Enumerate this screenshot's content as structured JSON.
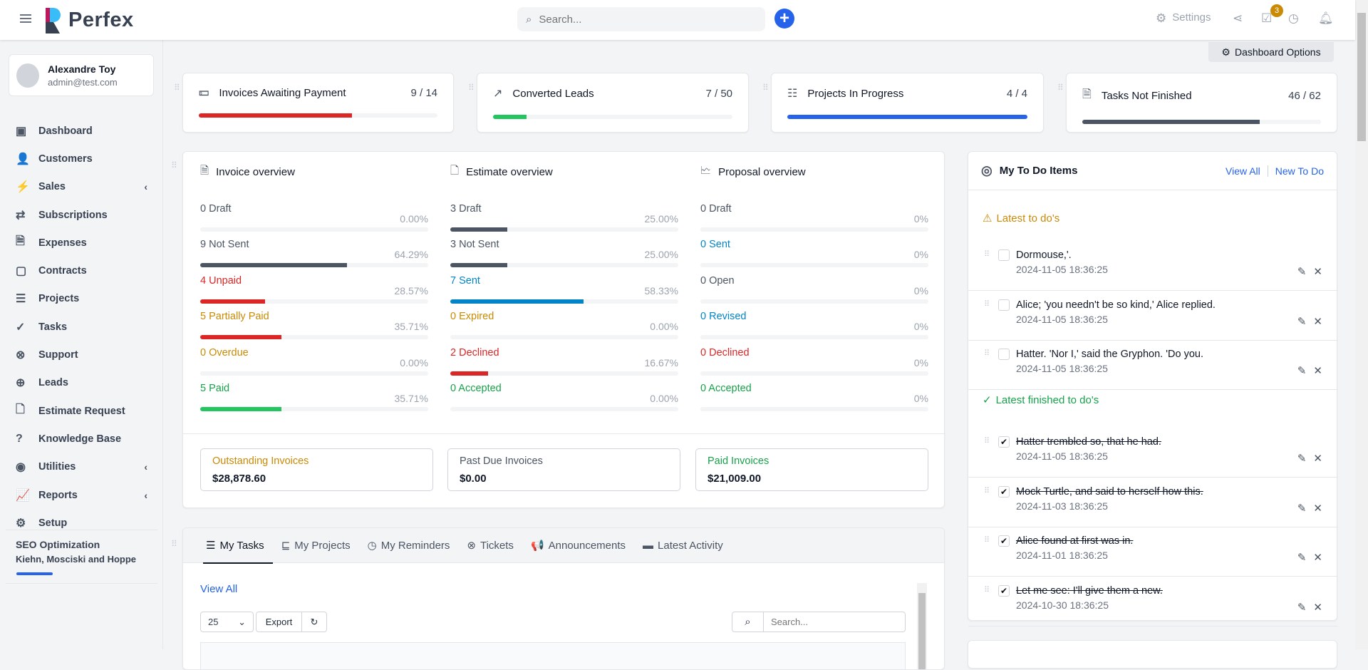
{
  "header": {
    "brand": "Perfex",
    "search_placeholder": "Search...",
    "settings_label": "Settings",
    "tasks_badge": "3"
  },
  "user": {
    "name": "Alexandre Toy",
    "email": "admin@test.com"
  },
  "sidebar": {
    "items": [
      {
        "label": "Dashboard",
        "icon": "▣"
      },
      {
        "label": "Customers",
        "icon": "👤"
      },
      {
        "label": "Sales",
        "icon": "⚡",
        "chev": "‹"
      },
      {
        "label": "Subscriptions",
        "icon": "⇄"
      },
      {
        "label": "Expenses",
        "icon": "🗎"
      },
      {
        "label": "Contracts",
        "icon": "▢"
      },
      {
        "label": "Projects",
        "icon": "☰"
      },
      {
        "label": "Tasks",
        "icon": "✓"
      },
      {
        "label": "Support",
        "icon": "⊗"
      },
      {
        "label": "Leads",
        "icon": "⊕"
      },
      {
        "label": "Estimate Request",
        "icon": "🗋"
      },
      {
        "label": "Knowledge Base",
        "icon": "?"
      },
      {
        "label": "Utilities",
        "icon": "◉",
        "chev": "‹"
      },
      {
        "label": "Reports",
        "icon": "📈",
        "chev": "‹"
      },
      {
        "label": "Setup",
        "icon": "⚙"
      }
    ],
    "project": {
      "name": "SEO Optimization",
      "client": "Kiehn, Mosciski and Hoppe",
      "progress": 0.2
    }
  },
  "dashboard_options": "Dashboard Options",
  "stats": [
    {
      "label": "Invoices Awaiting Payment",
      "value": "9 / 14",
      "fraction": 0.643,
      "color": "#dc2626",
      "icon": "money-icon"
    },
    {
      "label": "Converted Leads",
      "value": "7 / 50",
      "fraction": 0.14,
      "color": "#22c55e",
      "icon": "trend-icon"
    },
    {
      "label": "Projects In Progress",
      "value": "4 / 4",
      "fraction": 1,
      "color": "#2563eb",
      "icon": "sliders-icon"
    },
    {
      "label": "Tasks Not Finished",
      "value": "46 / 62",
      "fraction": 0.742,
      "color": "#4b5563",
      "icon": "file-check-icon"
    }
  ],
  "overview": [
    {
      "title": "Invoice overview",
      "rows": [
        {
          "label": "0 Draft",
          "pct": "0.00%",
          "value": 0,
          "color": "#4b5563"
        },
        {
          "label": "9 Not Sent",
          "pct": "64.29%",
          "value": 64.29,
          "color": "#4b5563"
        },
        {
          "label": "4 Unpaid",
          "pct": "28.57%",
          "value": 28.57,
          "color": "#dc2626"
        },
        {
          "label": "5 Partially Paid",
          "pct": "35.71%",
          "value": 35.71,
          "color": "#ca8a04",
          "bar": "#dc2626"
        },
        {
          "label": "0 Overdue",
          "pct": "0.00%",
          "value": 0,
          "color": "#ca8a04"
        },
        {
          "label": "5 Paid",
          "pct": "35.71%",
          "value": 35.71,
          "color": "#16a34a",
          "bar": "#22c55e"
        }
      ]
    },
    {
      "title": "Estimate overview",
      "rows": [
        {
          "label": "3 Draft",
          "pct": "25.00%",
          "value": 25,
          "color": "#4b5563"
        },
        {
          "label": "3 Not Sent",
          "pct": "25.00%",
          "value": 25,
          "color": "#4b5563"
        },
        {
          "label": "7 Sent",
          "pct": "58.33%",
          "value": 58.33,
          "color": "#0284c7"
        },
        {
          "label": "0 Expired",
          "pct": "0.00%",
          "value": 0,
          "color": "#ca8a04"
        },
        {
          "label": "2 Declined",
          "pct": "16.67%",
          "value": 16.67,
          "color": "#dc2626"
        },
        {
          "label": "0 Accepted",
          "pct": "0.00%",
          "value": 0,
          "color": "#16a34a"
        }
      ]
    },
    {
      "title": "Proposal overview",
      "rows": [
        {
          "label": "0 Draft",
          "pct": "0%",
          "value": 0,
          "color": "#4b5563"
        },
        {
          "label": "0 Sent",
          "pct": "0%",
          "value": 0,
          "color": "#0284c7"
        },
        {
          "label": "0 Open",
          "pct": "0%",
          "value": 0,
          "color": "#4b5563"
        },
        {
          "label": "0 Revised",
          "pct": "0%",
          "value": 0,
          "color": "#0284c7"
        },
        {
          "label": "0 Declined",
          "pct": "0%",
          "value": 0,
          "color": "#dc2626"
        },
        {
          "label": "0 Accepted",
          "pct": "0%",
          "value": 0,
          "color": "#16a34a"
        }
      ]
    }
  ],
  "summary": [
    {
      "title": "Outstanding Invoices",
      "value": "$28,878.60",
      "color": "#ca8a04"
    },
    {
      "title": "Past Due Invoices",
      "value": "$0.00",
      "color": "#4b5563"
    },
    {
      "title": "Paid Invoices",
      "value": "$21,009.00",
      "color": "#16a34a"
    }
  ],
  "tabs": [
    {
      "label": "My Tasks",
      "icon": "☰"
    },
    {
      "label": "My Projects",
      "icon": "⊑"
    },
    {
      "label": "My Reminders",
      "icon": "◷"
    },
    {
      "label": "Tickets",
      "icon": "⊗"
    },
    {
      "label": "Announcements",
      "icon": "📢"
    },
    {
      "label": "Latest Activity",
      "icon": "▬"
    }
  ],
  "tasks_table": {
    "view_all": "View All",
    "page_length": "25",
    "export": "Export",
    "search_placeholder": "Search..."
  },
  "todo": {
    "title": "My To Do Items",
    "view_all": "View All",
    "new": "New To Do",
    "latest_label": "Latest to do's",
    "finished_label": "Latest finished to do's",
    "latest": [
      {
        "text": "Dormouse,'.",
        "date": "2024-11-05 18:36:25"
      },
      {
        "text": "Alice; 'you needn't be so kind,' Alice replied.",
        "date": "2024-11-05 18:36:25"
      },
      {
        "text": "Hatter. 'Nor I,' said the Gryphon. 'Do you.",
        "date": "2024-11-05 18:36:25"
      }
    ],
    "finished": [
      {
        "text": "Hatter trembled so, that he had.",
        "date": "2024-11-05 18:36:25"
      },
      {
        "text": "Mock Turtle, and said to herself how this.",
        "date": "2024-11-03 18:36:25"
      },
      {
        "text": "Alice found at first was in.",
        "date": "2024-11-01 18:36:25"
      },
      {
        "text": "Let me see: I'll give them a new.",
        "date": "2024-10-30 18:36:25"
      }
    ]
  }
}
